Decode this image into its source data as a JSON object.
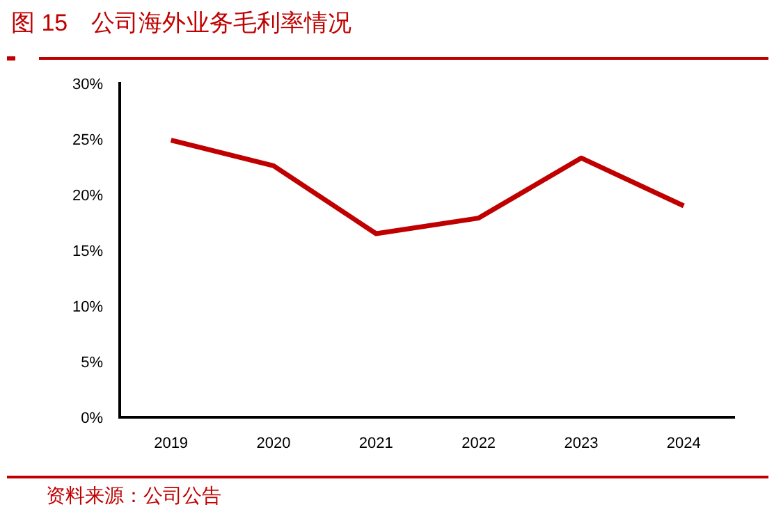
{
  "chart_data": {
    "type": "line",
    "title": "图 15　公司海外业务毛利率情况",
    "categories": [
      "2019",
      "2020",
      "2021",
      "2022",
      "2023",
      "2024"
    ],
    "series": [
      {
        "color": "#c00000",
        "values": [
          24.9,
          22.6,
          16.5,
          17.9,
          23.3,
          19.0
        ]
      }
    ],
    "ylim": [
      0,
      30
    ],
    "yticks": [
      {
        "value": 0,
        "label": "0%"
      },
      {
        "value": 5,
        "label": "5%"
      },
      {
        "value": 10,
        "label": "10%"
      },
      {
        "value": 15,
        "label": "15%"
      },
      {
        "value": 20,
        "label": "20%"
      },
      {
        "value": 25,
        "label": "25%"
      },
      {
        "value": 30,
        "label": "30%"
      }
    ],
    "grid": false,
    "marker": "none",
    "line_style": "solid",
    "annotations": [
      "资料来源：公司公告"
    ]
  }
}
